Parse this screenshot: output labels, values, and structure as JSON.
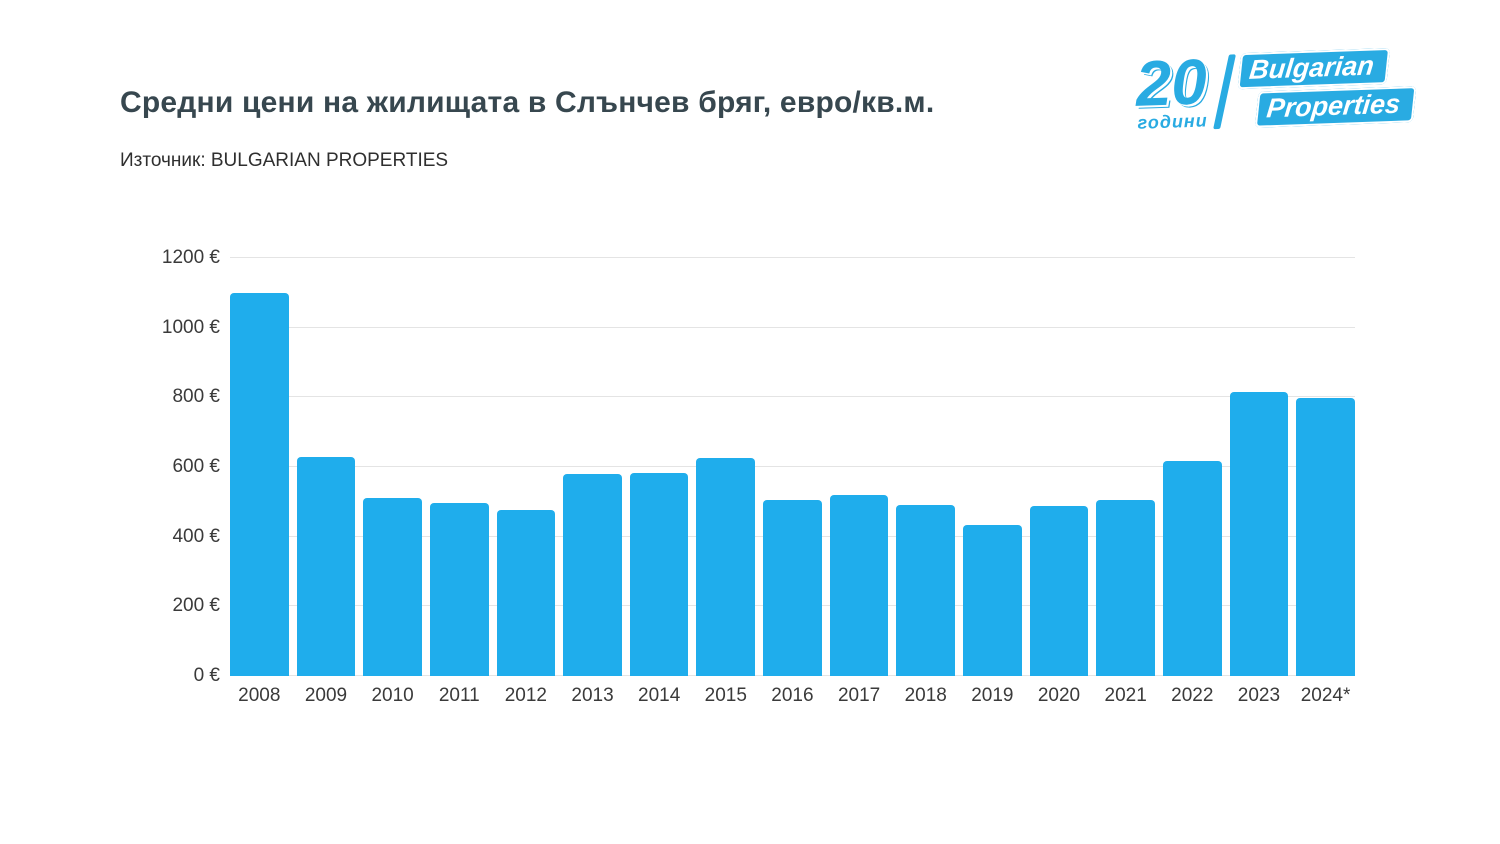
{
  "header": {
    "title": "Средни цени на жилищата в Слънчев бряг, евро/кв.м.",
    "source": "Източник: BULGARIAN PROPERTIES"
  },
  "logo": {
    "years_number": "20",
    "years_label": "години",
    "brand_line1": "Bulgarian",
    "brand_line2": "Properties",
    "color": "#29abe2"
  },
  "chart_data": {
    "type": "bar",
    "title": "Средни цени на жилищата в Слънчев бряг, евро/кв.м.",
    "source": "Източник: BULGARIAN PROPERTIES",
    "categories": [
      "2008",
      "2009",
      "2010",
      "2011",
      "2012",
      "2013",
      "2014",
      "2015",
      "2016",
      "2017",
      "2018",
      "2019",
      "2020",
      "2021",
      "2022",
      "2023",
      "2024*"
    ],
    "values": [
      1100,
      630,
      510,
      496,
      478,
      580,
      583,
      627,
      505,
      520,
      490,
      434,
      488,
      505,
      618,
      816,
      797
    ],
    "xlabel": "",
    "ylabel": "",
    "ylim": [
      0,
      1200
    ],
    "y_tick_step": 200,
    "y_ticks": [
      "0 €",
      "200 €",
      "400 €",
      "600 €",
      "800 €",
      "1000 €",
      "1200 €"
    ],
    "currency_suffix": " €",
    "bar_color": "#1fadec",
    "grid": true,
    "legend": "none"
  }
}
